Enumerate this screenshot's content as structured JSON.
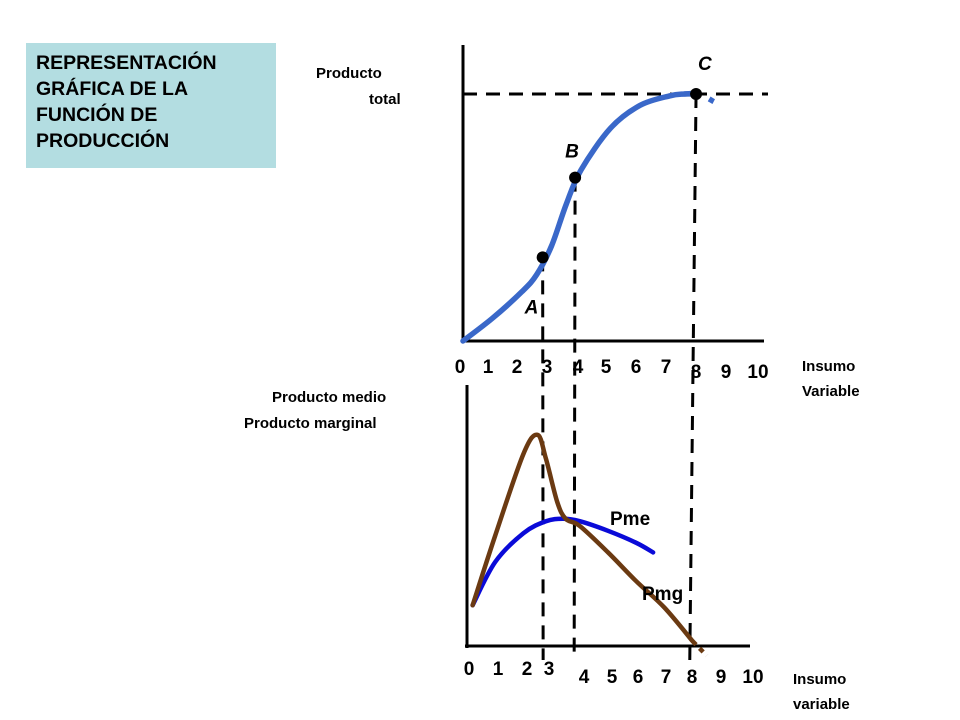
{
  "title": "REPRESENTACIÓN\nGRÁFICA DE LA\nFUNCIÓN DE\nPRODUCCIÓN",
  "colors": {
    "title_bg": "#b3dde1",
    "total_product": "#3a68c9",
    "average_product": "#0a0ad8",
    "marginal_product": "#6b3a12",
    "axis": "#000000"
  },
  "chart_data": [
    {
      "type": "line",
      "ylabel_line1": "Producto",
      "ylabel_line2": "total",
      "xlabel_line1": "Insumo",
      "xlabel_line2": "Variable",
      "x_ticks": [
        "0",
        "1",
        "2",
        "3",
        "4",
        "5",
        "6",
        "7",
        "8",
        "9",
        "10"
      ],
      "point_labels": {
        "A": "A",
        "B": "B",
        "C": "C"
      },
      "series": [
        {
          "x": [
            0,
            1,
            2,
            2.5,
            3,
            3.5,
            4,
            5,
            6,
            7,
            7.5,
            8,
            8.5
          ],
          "y": [
            0,
            1.2,
            2.6,
            3.5,
            5.0,
            7.2,
            9.0,
            11.2,
            12.4,
            12.9,
            13.0,
            13.0,
            12.6
          ]
        }
      ],
      "points": [
        {
          "label": "A",
          "x": 2.7,
          "y": 4.4
        },
        {
          "label": "B",
          "x": 3.8,
          "y": 8.6
        },
        {
          "label": "C",
          "x": 7.9,
          "y": 13.0
        }
      ],
      "ylim": [
        0,
        15
      ],
      "xlim": [
        0,
        10
      ]
    },
    {
      "type": "line",
      "ylabel_line1": "Producto medio",
      "ylabel_line2": "Producto marginal",
      "xlabel_line1": "Insumo",
      "xlabel_line2": "variable",
      "x_ticks": [
        "0",
        "1",
        "2",
        "3",
        "4",
        "5",
        "6",
        "7",
        "8",
        "9",
        "10"
      ],
      "series": [
        {
          "name": "Pme",
          "x": [
            0.2,
            1,
            2,
            2.8,
            3.4,
            4,
            5,
            6,
            6.6
          ],
          "y": [
            1.7,
            3.5,
            4.7,
            5.2,
            5.3,
            5.2,
            4.8,
            4.3,
            3.9
          ]
        },
        {
          "name": "Pmg",
          "x": [
            0.2,
            1,
            2,
            2.5,
            2.8,
            3.2,
            3.5,
            4,
            5,
            6,
            7,
            8,
            8.5
          ],
          "y": [
            1.7,
            4.6,
            8.0,
            8.8,
            7.8,
            6.0,
            5.3,
            5.0,
            3.9,
            2.7,
            1.6,
            0.2,
            -0.4
          ]
        }
      ],
      "ylim": [
        0,
        10
      ],
      "xlim": [
        0,
        10
      ]
    }
  ]
}
